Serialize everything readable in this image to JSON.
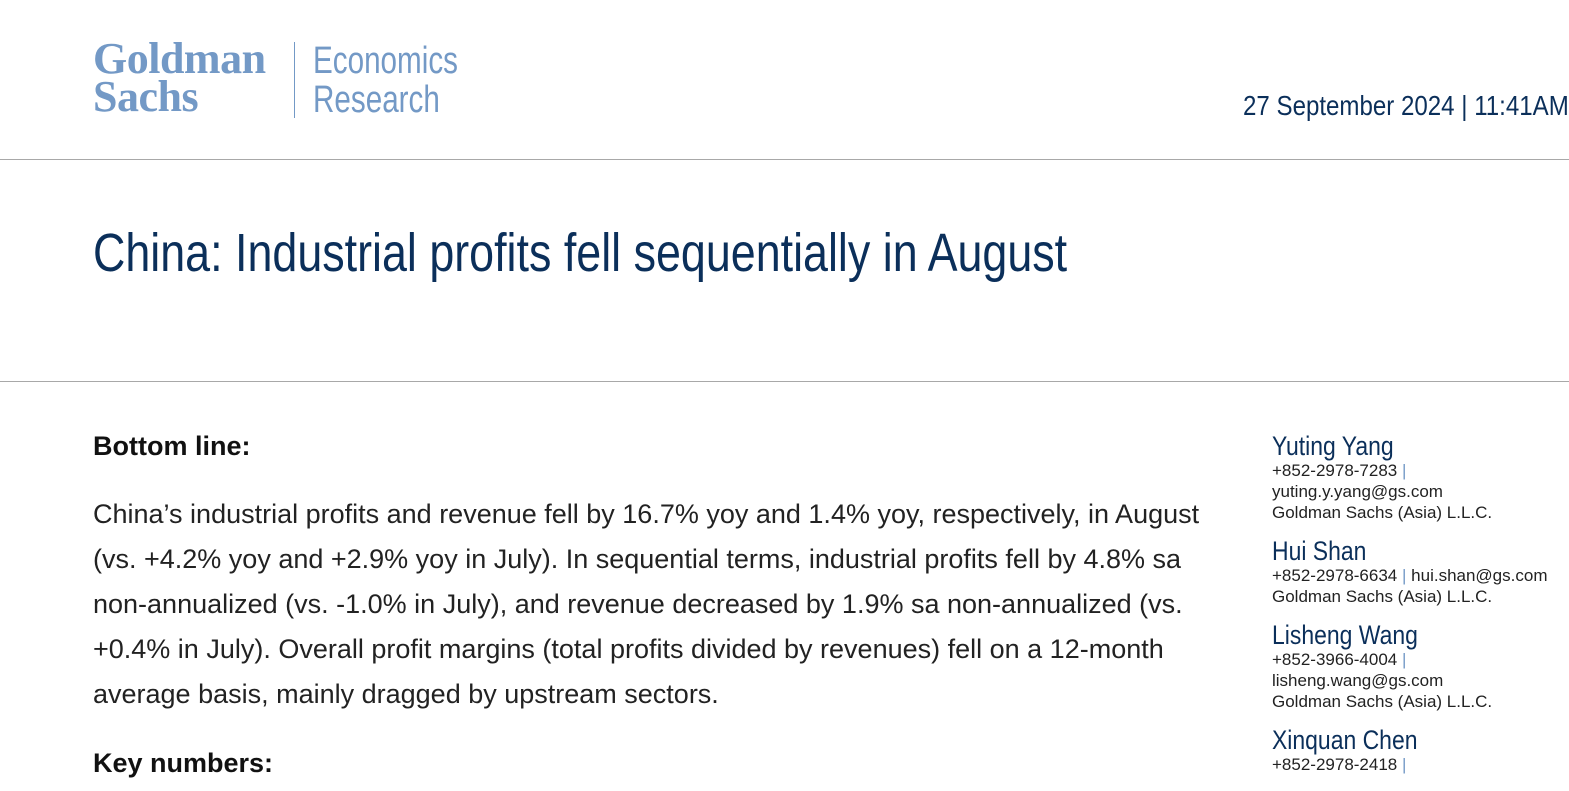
{
  "header": {
    "logo_line1": "Goldman",
    "logo_line2": "Sachs",
    "division_line1": "Economics",
    "division_line2": "Research",
    "dateline": "27 September 2024 | 11:41AM"
  },
  "title": "China: Industrial profits fell sequentially in August",
  "body": {
    "bottom_line_heading": "Bottom line:",
    "bottom_line_text": "China’s industrial profits and revenue fell by 16.7% yoy and 1.4% yoy, respectively, in August (vs. +4.2% yoy and +2.9% yoy in July). In sequential terms, industrial profits fell by 4.8% sa non-annualized (vs. -1.0% in July), and revenue decreased by 1.9% sa non-annualized (vs. +0.4% in July). Overall profit margins (total profits divided by revenues) fell on a 12-month average basis, mainly dragged by upstream sectors.",
    "key_numbers_heading": "Key numbers:"
  },
  "authors": [
    {
      "name": "Yuting Yang",
      "phone": "+852-2978-7283",
      "email": "yuting.y.yang@gs.com",
      "company": "Goldman Sachs (Asia) L.L.C."
    },
    {
      "name": "Hui Shan",
      "phone": "+852-2978-6634",
      "email": "hui.shan@gs.com",
      "company": "Goldman Sachs (Asia) L.L.C."
    },
    {
      "name": "Lisheng Wang",
      "phone": "+852-3966-4004",
      "email": "lisheng.wang@gs.com",
      "company": "Goldman Sachs (Asia) L.L.C."
    },
    {
      "name": "Xinquan Chen",
      "phone": "+852-2978-2418"
    }
  ],
  "separator": "|",
  "colors": {
    "brand_light_blue": "#7399c6",
    "navy": "#0b2f5a",
    "rule_gray": "#a8a8a8"
  }
}
